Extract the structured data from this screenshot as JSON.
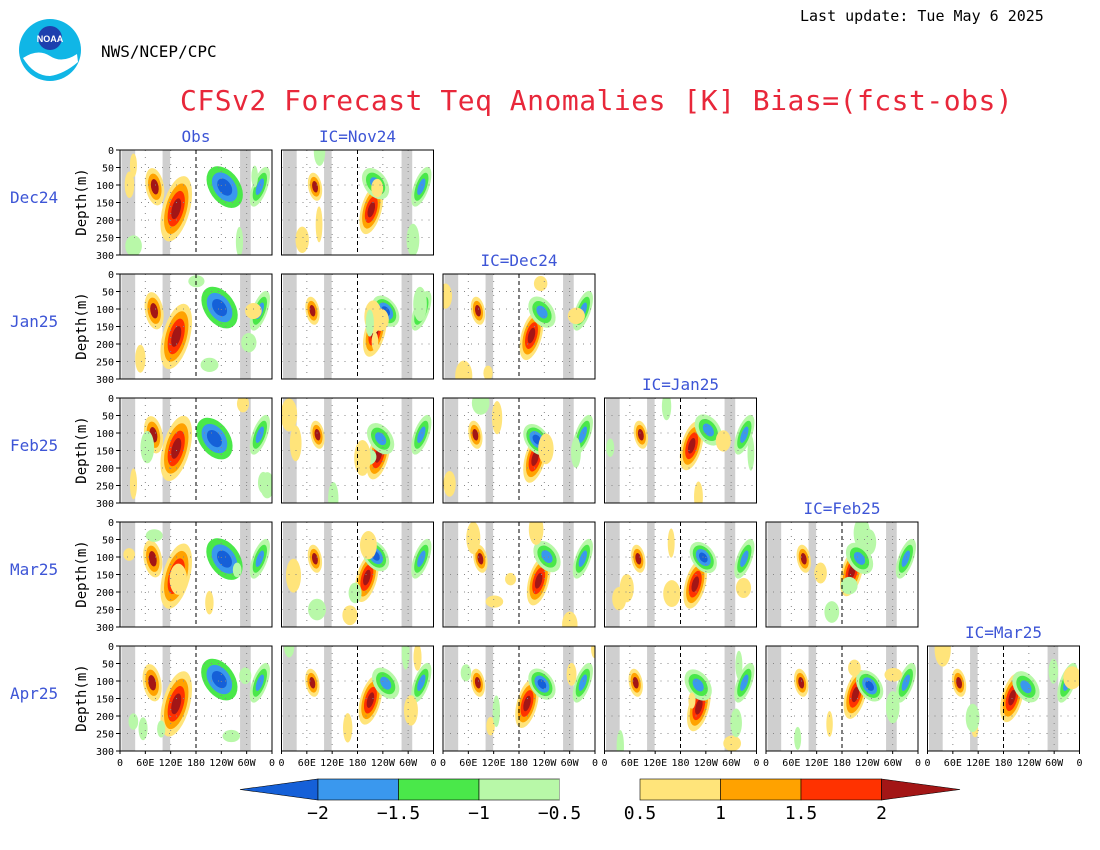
{
  "header": {
    "org": "NWS/NCEP/CPC",
    "last_update": "Last update: Tue May 6 2025",
    "title": "CFSv2 Forecast Teq Anomalies [K] Bias=(fcst-obs)",
    "logo_text": "NOAA"
  },
  "chart_data": {
    "type": "heatmap",
    "variable": "Teq Anomalies [K]",
    "ylabel": "Depth(m)",
    "y_ticks": [
      "0",
      "50",
      "100",
      "150",
      "200",
      "250",
      "300"
    ],
    "x_ticks": [
      "0",
      "60E",
      "120E",
      "180",
      "120W",
      "60W",
      "0"
    ],
    "ylim": [
      300,
      0
    ],
    "row_labels": [
      "Dec24",
      "Jan25",
      "Feb25",
      "Mar25",
      "Apr25"
    ],
    "column_labels": [
      "Obs",
      "IC=Nov24",
      "IC=Dec24",
      "IC=Jan25",
      "IC=Feb25",
      "IC=Mar25"
    ],
    "panels_per_row": [
      2,
      3,
      4,
      5,
      6
    ],
    "colorbar": {
      "ticks": [
        "−2",
        "−1.5",
        "−1",
        "−0.5",
        "0.5",
        "1",
        "1.5",
        "2"
      ],
      "colors": [
        "#1560d8",
        "#3a98ee",
        "#4ae84a",
        "#b8f8a8",
        "#ffffff",
        "#ffe47a",
        "#ffa200",
        "#ff3200",
        "#a31616"
      ]
    },
    "colors": {
      "land": "#cfcfcf",
      "label_blue": "#3d55d6",
      "title_red": "#e8273a"
    }
  }
}
